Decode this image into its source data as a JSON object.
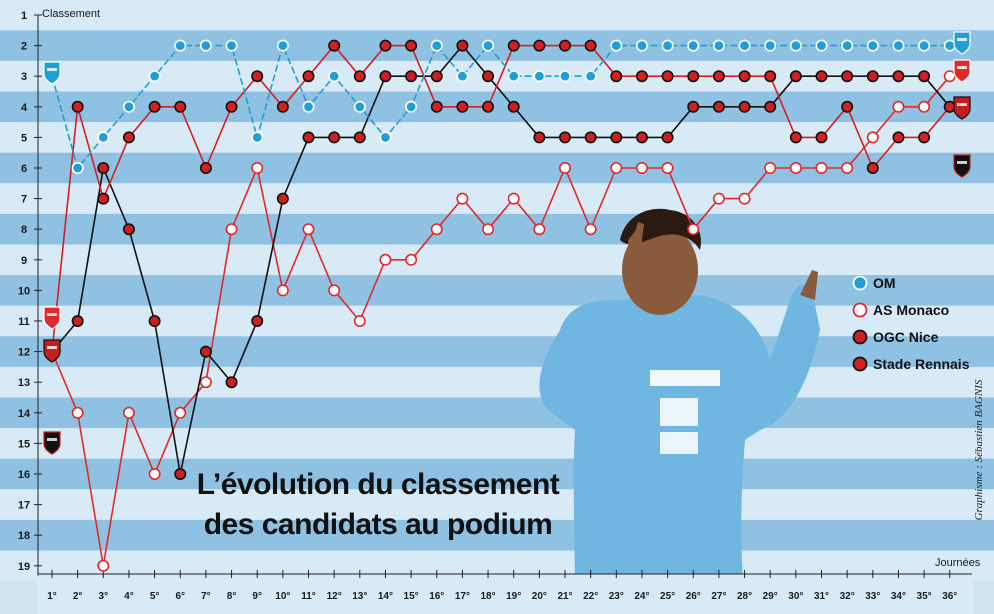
{
  "chart_data": {
    "type": "line",
    "title_line1": "L’évolution du classement",
    "title_line2": "des candidats au podium",
    "ylabel": "Classement",
    "xlabel": "Journées",
    "credit": "Graphisme : Sébastien BAGNIS",
    "y_ticks": [
      "1",
      "2",
      "3",
      "4",
      "5",
      "6",
      "7",
      "8",
      "9",
      "10",
      "11",
      "12",
      "13",
      "14",
      "15",
      "16",
      "17",
      "18",
      "19"
    ],
    "ylim": [
      1,
      19
    ],
    "y_inverted": true,
    "categories": [
      "1°",
      "2°",
      "3°",
      "4°",
      "5°",
      "6°",
      "7°",
      "8°",
      "9°",
      "10°",
      "11°",
      "12°",
      "13°",
      "14°",
      "15°",
      "16°",
      "17°",
      "18°",
      "19°",
      "20°",
      "21°",
      "22°",
      "23°",
      "24°",
      "25°",
      "26°",
      "27°",
      "28°",
      "29°",
      "30°",
      "31°",
      "32°",
      "33°",
      "34°",
      "35°",
      "36°"
    ],
    "series": [
      {
        "name": "OM",
        "line_color": "#1e9fd8",
        "marker_fill": "#1e9fd8",
        "marker_stroke": "#ffffff",
        "dashed": true,
        "values": [
          3,
          6,
          5,
          4,
          3,
          2,
          2,
          2,
          5,
          2,
          4,
          3,
          4,
          5,
          4,
          2,
          3,
          2,
          3,
          3,
          3,
          3,
          2,
          2,
          2,
          2,
          2,
          2,
          2,
          2,
          2,
          2,
          2,
          2,
          2,
          2
        ]
      },
      {
        "name": "AS Monaco",
        "line_color": "#e02a2a",
        "marker_fill": "#ffffff",
        "marker_stroke": "#e02a2a",
        "dashed": false,
        "values": [
          12,
          14,
          19,
          14,
          16,
          14,
          13,
          8,
          6,
          10,
          8,
          10,
          11,
          9,
          9,
          8,
          7,
          8,
          7,
          8,
          6,
          8,
          6,
          6,
          6,
          8,
          7,
          7,
          6,
          6,
          6,
          6,
          5,
          4,
          4,
          3
        ]
      },
      {
        "name": "OGC Nice",
        "line_color": "#111111",
        "marker_fill": "#cc1f1f",
        "marker_stroke": "#111111",
        "dashed": false,
        "values": [
          12,
          11,
          6,
          8,
          11,
          16,
          12,
          13,
          11,
          7,
          5,
          5,
          5,
          3,
          3,
          3,
          2,
          3,
          4,
          5,
          5,
          5,
          5,
          5,
          5,
          4,
          4,
          4,
          4,
          3,
          3,
          3,
          3,
          3,
          3,
          4
        ]
      },
      {
        "name": "Stade Rennais",
        "line_color": "#d42020",
        "marker_fill": "#d42020",
        "marker_stroke": "#111111",
        "dashed": false,
        "values": [
          12,
          4,
          7,
          5,
          4,
          4,
          6,
          4,
          3,
          4,
          3,
          2,
          3,
          2,
          2,
          4,
          4,
          4,
          2,
          2,
          2,
          2,
          3,
          3,
          3,
          3,
          3,
          3,
          3,
          5,
          5,
          4,
          6,
          5,
          5,
          4
        ]
      }
    ],
    "legend_position": "right"
  },
  "colors": {
    "band_dark": "#8fc1e2",
    "band_light": "#d8eaf6",
    "background": "#cfe3f1"
  }
}
